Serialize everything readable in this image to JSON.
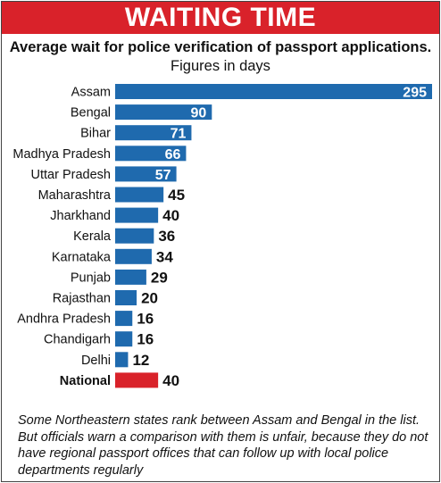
{
  "header": {
    "banner": "WAITING TIME",
    "title_bold": "Average wait for police verification of passport applications.",
    "title_unit": "Figures in days"
  },
  "colors": {
    "banner": "#d9222a",
    "bar": "#1f6aae",
    "national_bar": "#d9222a"
  },
  "chart_data": {
    "type": "bar",
    "orientation": "horizontal",
    "categories": [
      "Assam",
      "Bengal",
      "Bihar",
      "Madhya Pradesh",
      "Uttar Pradesh",
      "Maharashtra",
      "Jharkhand",
      "Kerala",
      "Karnataka",
      "Punjab",
      "Rajasthan",
      "Andhra Pradesh",
      "Chandigarh",
      "Delhi",
      "National"
    ],
    "values": [
      295,
      90,
      71,
      66,
      57,
      45,
      40,
      36,
      34,
      29,
      20,
      16,
      16,
      12,
      40
    ],
    "highlight": "National",
    "title": "Average wait for police verification of passport applications. Figures in days",
    "xlim": [
      0,
      295
    ]
  },
  "footnote": "Some Northeastern states rank between Assam and Bengal in the list. But officials warn a comparison with them is unfair, because  they do not have regional passport offices that can follow up with local police departments regularly"
}
